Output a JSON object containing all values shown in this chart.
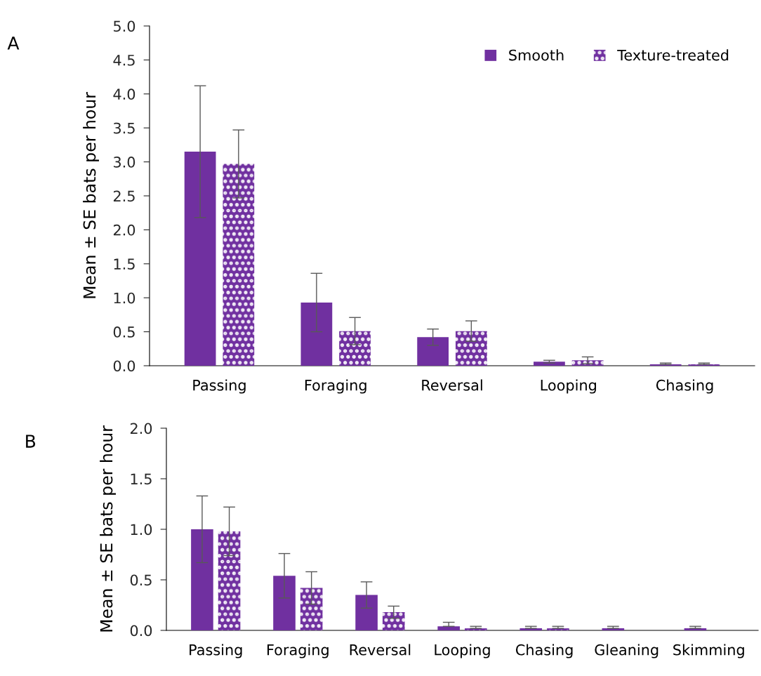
{
  "chart_data": [
    {
      "type": "bar",
      "title": "A",
      "ylabel": "Mean ± SE bats per hour",
      "categories": [
        "Passing",
        "Foraging",
        "Reversal",
        "Looping",
        "Chasing"
      ],
      "series": [
        {
          "name": "Smooth",
          "color": "#7030a0",
          "values": [
            3.15,
            0.93,
            0.42,
            0.06,
            0.02
          ],
          "errors": [
            0.97,
            0.43,
            0.12,
            0.02,
            [
              0.02,
              0.04
            ]
          ]
        },
        {
          "name": "Texture-treated",
          "color": "#7030a0",
          "values": [
            2.97,
            0.51,
            0.51,
            0.08,
            0.02
          ],
          "errors": [
            0.5,
            0.2,
            0.15,
            0.05,
            [
              0.02,
              0.04
            ]
          ]
        }
      ],
      "ylim": [
        0,
        5
      ],
      "yticks": [
        {
          "value": 0,
          "label": "0.0"
        },
        0.5,
        {
          "value": 1,
          "label": "1.0"
        },
        1.5,
        {
          "value": 2,
          "label": "2.0"
        },
        2.5,
        {
          "value": 3,
          "label": "3.0"
        },
        3.5,
        {
          "value": 4,
          "label": "4.0"
        },
        4.5,
        {
          "value": 5,
          "label": "5.0"
        }
      ],
      "grid": false,
      "legend": "top right"
    },
    {
      "type": "bar",
      "title": "B",
      "ylabel": "Mean ± SE bats per hour",
      "categories": [
        "Passing",
        "Foraging",
        "Reversal",
        "Looping",
        "Chasing",
        "Gleaning",
        "Skimming"
      ],
      "series": [
        {
          "color": "#7030a0",
          "values": [
            1.0,
            0.54,
            0.35,
            0.04,
            0.02,
            0.02,
            0.02
          ],
          "errors": [
            0.33,
            0.22,
            0.13,
            [
              0.04,
              0.08
            ],
            [
              0.02,
              0.04
            ],
            [
              0.02,
              0.04
            ],
            [
              0.02,
              0.04
            ]
          ]
        },
        {
          "color": "#7030a0",
          "values": [
            0.98,
            0.42,
            0.18,
            0.02,
            0.02,
            0,
            0
          ],
          "errors": [
            0.24,
            0.16,
            0.06,
            [
              0.02,
              0.04
            ],
            [
              0.02,
              0.04
            ],
            null,
            null
          ]
        }
      ],
      "ylim": [
        0,
        2
      ],
      "yticks": [
        {
          "value": 0,
          "label": "0.0"
        },
        0.5,
        {
          "value": 1,
          "label": "1.0"
        },
        1.5,
        {
          "value": 2,
          "label": "2.0"
        }
      ],
      "grid": false,
      "legend": false
    }
  ]
}
